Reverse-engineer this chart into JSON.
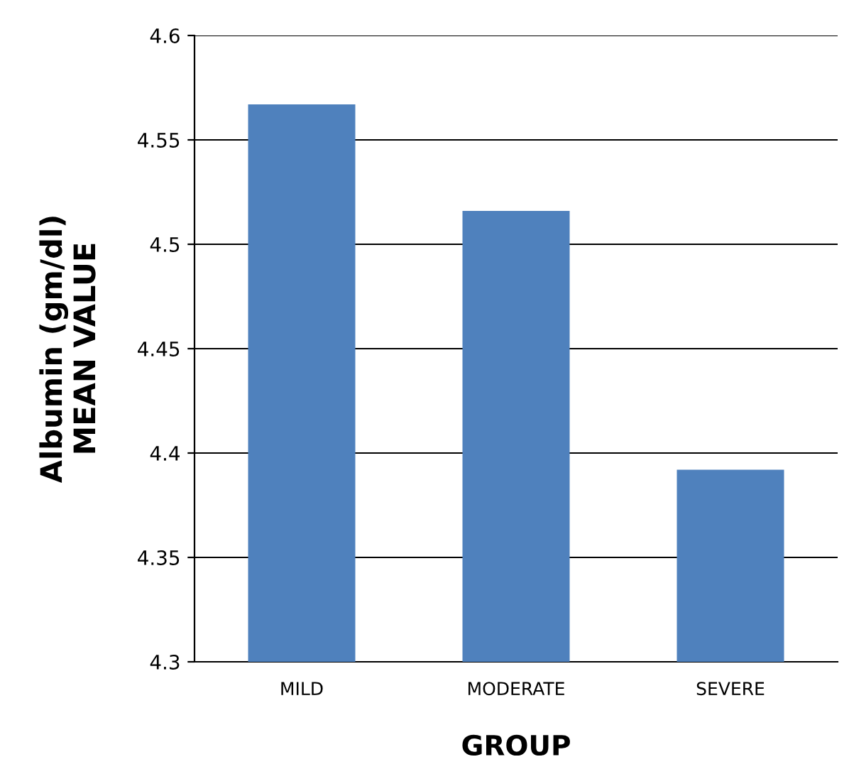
{
  "chart_data": {
    "type": "bar",
    "xlabel": "GROUP",
    "ylabel": "Albumin (gm/dl)\nMEAN VALUE",
    "categories": [
      "MILD",
      "MODERATE",
      "SEVERE"
    ],
    "values": [
      4.567,
      4.516,
      4.392
    ],
    "color": "#4f81bd",
    "ylim": [
      4.3,
      4.6
    ],
    "yticks": [
      4.3,
      4.35,
      4.4,
      4.45,
      4.5,
      4.55,
      4.6
    ],
    "grid": "y"
  }
}
